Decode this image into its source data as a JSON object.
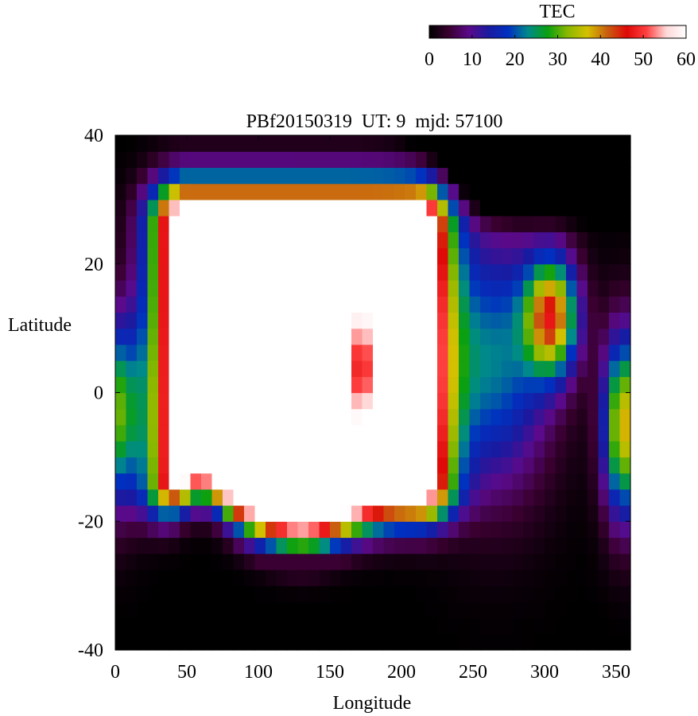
{
  "chart_data": {
    "type": "heatmap",
    "title": "PBf20150319  UT: 9  mjd: 57100",
    "xlabel": "Longitude",
    "ylabel": "Latitude",
    "xlim": [
      0,
      360
    ],
    "ylim": [
      -40,
      40
    ],
    "xticks": [
      "0",
      "50",
      "100",
      "150",
      "200",
      "250",
      "300",
      "350"
    ],
    "yticks": [
      "-40",
      "-20",
      "0",
      "20",
      "40"
    ],
    "colorbar": {
      "label": "TEC",
      "range": [
        0,
        60
      ],
      "ticks": [
        "0",
        "10",
        "20",
        "30",
        "40",
        "50",
        "60"
      ],
      "stops": [
        "#000000",
        "#3a0030",
        "#5a0a8a",
        "#1a1aa0",
        "#0030c0",
        "#008a8a",
        "#0aa010",
        "#8ab800",
        "#d4c000",
        "#c86010",
        "#e00808",
        "#ff4040",
        "#ffd8d8",
        "#ffffff"
      ]
    },
    "grid": {
      "lon_step": 7.5,
      "lat_step": 2.5
    },
    "values_description_note": ""
  }
}
